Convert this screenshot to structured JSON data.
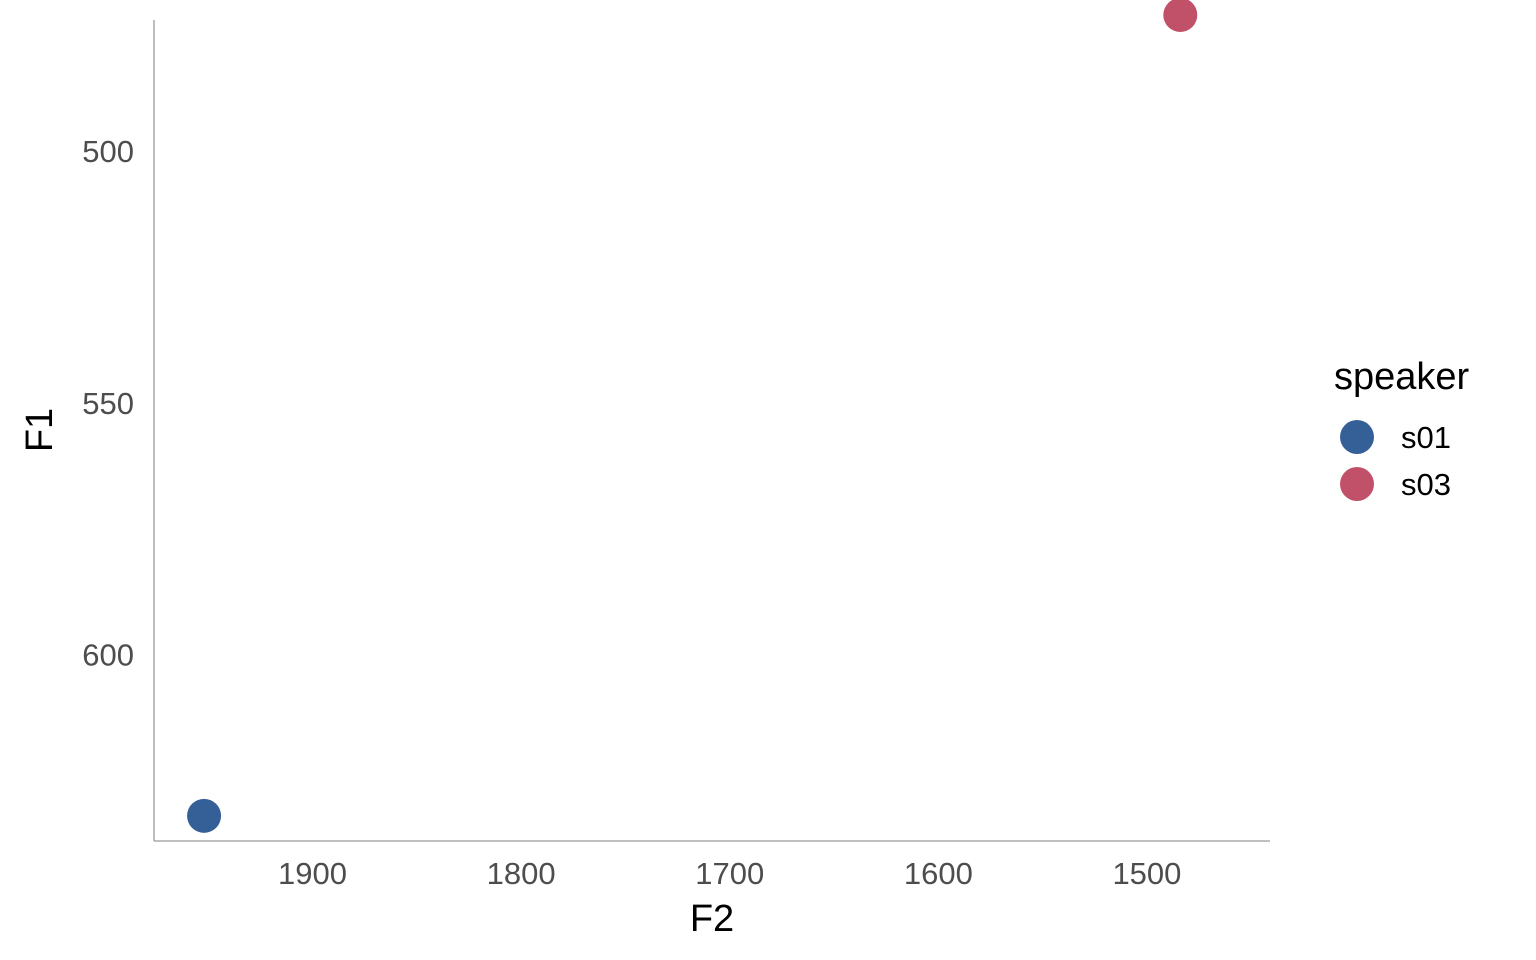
{
  "chart_data": {
    "type": "scatter",
    "xlabel": "F2",
    "ylabel": "F1",
    "x_reversed": true,
    "y_reversed": true,
    "xlim": [
      1976,
      1441
    ],
    "ylim": [
      474,
      637
    ],
    "x_ticks": [
      1900,
      1800,
      1700,
      1600,
      1500
    ],
    "y_ticks": [
      500,
      550,
      600
    ],
    "grid": false,
    "legend": {
      "title": "speaker",
      "position": "right"
    },
    "series": [
      {
        "name": "s01",
        "color": "#355F97",
        "points": [
          {
            "x": 1952,
            "y": 632
          }
        ]
      },
      {
        "name": "s03",
        "color": "#C05168",
        "points": [
          {
            "x": 1484,
            "y": 473
          }
        ]
      }
    ]
  }
}
